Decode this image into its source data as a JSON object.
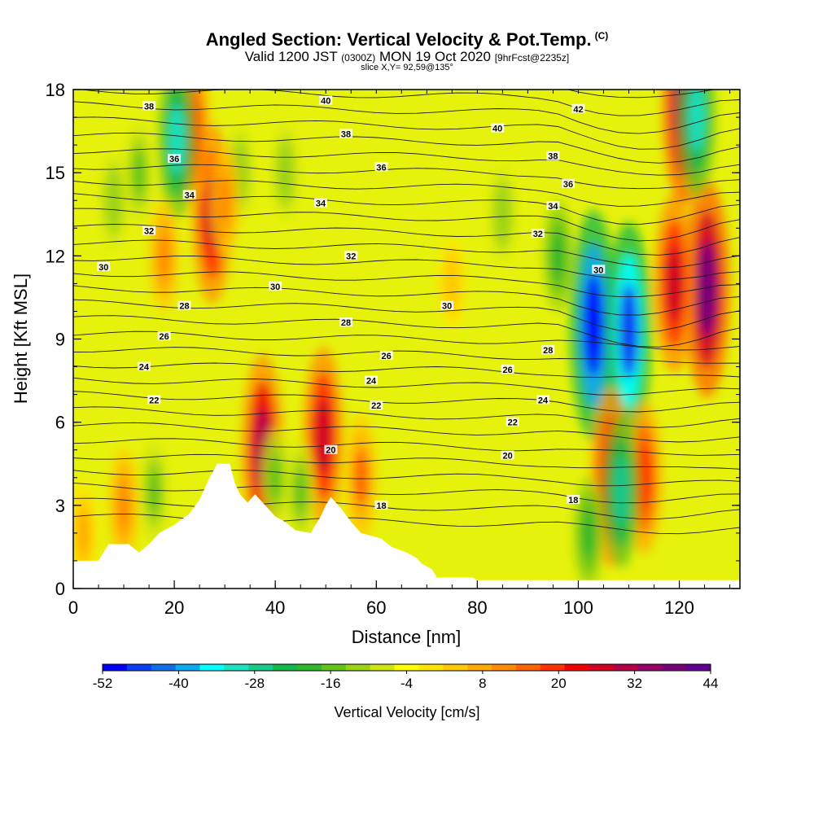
{
  "header": {
    "title": "Angled Section: Vertical Velocity & Pot.Temp.",
    "title_mark": "(C)",
    "valid_prefix": "Valid 1200 JST",
    "valid_z": "(0300Z)",
    "valid_date": "MON 19 Oct 2020",
    "valid_fcst": "[9hrFcst@2235z]",
    "slice": "slice X,Y= 92,59@135°"
  },
  "chart_data": {
    "type": "heatmap",
    "xlabel": "Distance [nm]",
    "ylabel": "Height [Kft MSL]",
    "xlim": [
      0,
      132
    ],
    "ylim": [
      0,
      18
    ],
    "xticks": [
      0,
      20,
      40,
      60,
      80,
      100,
      120
    ],
    "yticks": [
      0,
      3,
      6,
      9,
      12,
      15,
      18
    ],
    "colorbar": {
      "label": "Vertical Velocity [cm/s]",
      "tick_labels": [
        "-52",
        "-40",
        "-28",
        "-16",
        "-4",
        "8",
        "20",
        "32",
        "44"
      ],
      "colors": [
        "#0000ff",
        "#0a3ef5",
        "#0f6fe8",
        "#0aa8ee",
        "#00ffff",
        "#1ee0c0",
        "#19c98a",
        "#14b84a",
        "#2fb82a",
        "#62c419",
        "#9bd214",
        "#cfe50f",
        "#ffff00",
        "#ffe600",
        "#ffc800",
        "#ffaa00",
        "#ff8c00",
        "#ff6400",
        "#ff3200",
        "#f00000",
        "#d20023",
        "#b4004b",
        "#960069",
        "#780078",
        "#640096"
      ]
    },
    "potential_temperature_contours": [
      {
        "label": "18",
        "x": 99,
        "y": 3.2
      },
      {
        "label": "18",
        "x": 61,
        "y": 3.0
      },
      {
        "label": "20",
        "x": 86,
        "y": 4.8
      },
      {
        "label": "20",
        "x": 51,
        "y": 5.0
      },
      {
        "label": "22",
        "x": 87,
        "y": 6.0
      },
      {
        "label": "22",
        "x": 60,
        "y": 6.6
      },
      {
        "label": "22",
        "x": 16,
        "y": 6.8
      },
      {
        "label": "24",
        "x": 93,
        "y": 6.8
      },
      {
        "label": "24",
        "x": 59,
        "y": 7.5
      },
      {
        "label": "24",
        "x": 14,
        "y": 8.0
      },
      {
        "label": "26",
        "x": 86,
        "y": 7.9
      },
      {
        "label": "26",
        "x": 62,
        "y": 8.4
      },
      {
        "label": "26",
        "x": 18,
        "y": 9.1
      },
      {
        "label": "28",
        "x": 94,
        "y": 8.6
      },
      {
        "label": "28",
        "x": 54,
        "y": 9.6
      },
      {
        "label": "28",
        "x": 22,
        "y": 10.2
      },
      {
        "label": "30",
        "x": 74,
        "y": 10.2
      },
      {
        "label": "30",
        "x": 104,
        "y": 11.5
      },
      {
        "label": "30",
        "x": 40,
        "y": 10.9
      },
      {
        "label": "30",
        "x": 6,
        "y": 11.6
      },
      {
        "label": "32",
        "x": 92,
        "y": 12.8
      },
      {
        "label": "32",
        "x": 55,
        "y": 12.0
      },
      {
        "label": "32",
        "x": 15,
        "y": 12.9
      },
      {
        "label": "34",
        "x": 95,
        "y": 13.8
      },
      {
        "label": "34",
        "x": 49,
        "y": 13.9
      },
      {
        "label": "34",
        "x": 23,
        "y": 14.2
      },
      {
        "label": "36",
        "x": 98,
        "y": 14.6
      },
      {
        "label": "36",
        "x": 61,
        "y": 15.2
      },
      {
        "label": "36",
        "x": 20,
        "y": 15.5
      },
      {
        "label": "38",
        "x": 95,
        "y": 15.6
      },
      {
        "label": "38",
        "x": 54,
        "y": 16.4
      },
      {
        "label": "38",
        "x": 15,
        "y": 17.4
      },
      {
        "label": "40",
        "x": 84,
        "y": 16.6
      },
      {
        "label": "40",
        "x": 50,
        "y": 17.6
      },
      {
        "label": "42",
        "x": 100,
        "y": 17.3
      }
    ],
    "terrain": [
      [
        0,
        1.0
      ],
      [
        5,
        1.0
      ],
      [
        6,
        1.3
      ],
      [
        7,
        1.6
      ],
      [
        11,
        1.6
      ],
      [
        13,
        1.3
      ],
      [
        15,
        1.6
      ],
      [
        17,
        2.0
      ],
      [
        20,
        2.3
      ],
      [
        23,
        2.7
      ],
      [
        25,
        3.2
      ],
      [
        27,
        4.0
      ],
      [
        28.5,
        4.5
      ],
      [
        31,
        4.5
      ],
      [
        32,
        3.8
      ],
      [
        33,
        3.4
      ],
      [
        34.5,
        3.1
      ],
      [
        36,
        3.4
      ],
      [
        38,
        3.0
      ],
      [
        40,
        2.6
      ],
      [
        42,
        2.4
      ],
      [
        44,
        2.1
      ],
      [
        47,
        2.0
      ],
      [
        49,
        2.6
      ],
      [
        50,
        3.0
      ],
      [
        51,
        3.3
      ],
      [
        53,
        2.9
      ],
      [
        55,
        2.4
      ],
      [
        57,
        2.0
      ],
      [
        59,
        1.9
      ],
      [
        61,
        1.8
      ],
      [
        63,
        1.5
      ],
      [
        66,
        1.3
      ],
      [
        68,
        1.1
      ],
      [
        69,
        0.9
      ],
      [
        71,
        0.7
      ],
      [
        72,
        0.4
      ],
      [
        79,
        0.4
      ],
      [
        80,
        0.3
      ],
      [
        132,
        0.3
      ]
    ],
    "cells": [
      {
        "x": 27.5,
        "y": 13.5,
        "value": 36
      },
      {
        "x": 23.5,
        "y": 16.5,
        "value": 28
      },
      {
        "x": 37.5,
        "y": 5.0,
        "value": 40
      },
      {
        "x": 49.5,
        "y": 5.5,
        "value": 36
      },
      {
        "x": 121,
        "y": 17.5,
        "value": 44
      },
      {
        "x": 125.5,
        "y": 10.8,
        "value": 48
      },
      {
        "x": 119,
        "y": 11.0,
        "value": 36
      },
      {
        "x": 103,
        "y": 9.5,
        "value": -52
      },
      {
        "x": 110,
        "y": 9.3,
        "value": -48
      },
      {
        "x": 106.5,
        "y": 4.0,
        "value": 36
      },
      {
        "x": 113,
        "y": 4.0,
        "value": 28
      },
      {
        "x": 108.5,
        "y": 3.5,
        "value": -28
      },
      {
        "x": 102,
        "y": 2.0,
        "value": -16
      },
      {
        "x": 123.5,
        "y": 17.0,
        "value": -30
      },
      {
        "x": 20.5,
        "y": 16.2,
        "value": -30
      },
      {
        "x": 96,
        "y": 12.0,
        "value": -16
      },
      {
        "x": 85,
        "y": 13.5,
        "value": -10
      },
      {
        "x": 13,
        "y": 15.0,
        "value": -12
      },
      {
        "x": 33,
        "y": 15.0,
        "value": -10
      },
      {
        "x": 42,
        "y": 15.0,
        "value": -10
      },
      {
        "x": 40,
        "y": 4.0,
        "value": -12
      },
      {
        "x": 45,
        "y": 3.5,
        "value": -12
      },
      {
        "x": 16,
        "y": 3.5,
        "value": -12
      },
      {
        "x": 8,
        "y": 14.0,
        "value": -10
      },
      {
        "x": 2,
        "y": 2.0,
        "value": 14
      },
      {
        "x": 30,
        "y": 14.0,
        "value": 16
      },
      {
        "x": 18,
        "y": 12.0,
        "value": 16
      },
      {
        "x": 75,
        "y": 11.0,
        "value": 10
      },
      {
        "x": 57,
        "y": 4.0,
        "value": 20
      },
      {
        "x": 10,
        "y": 3.0,
        "value": 16
      }
    ]
  }
}
